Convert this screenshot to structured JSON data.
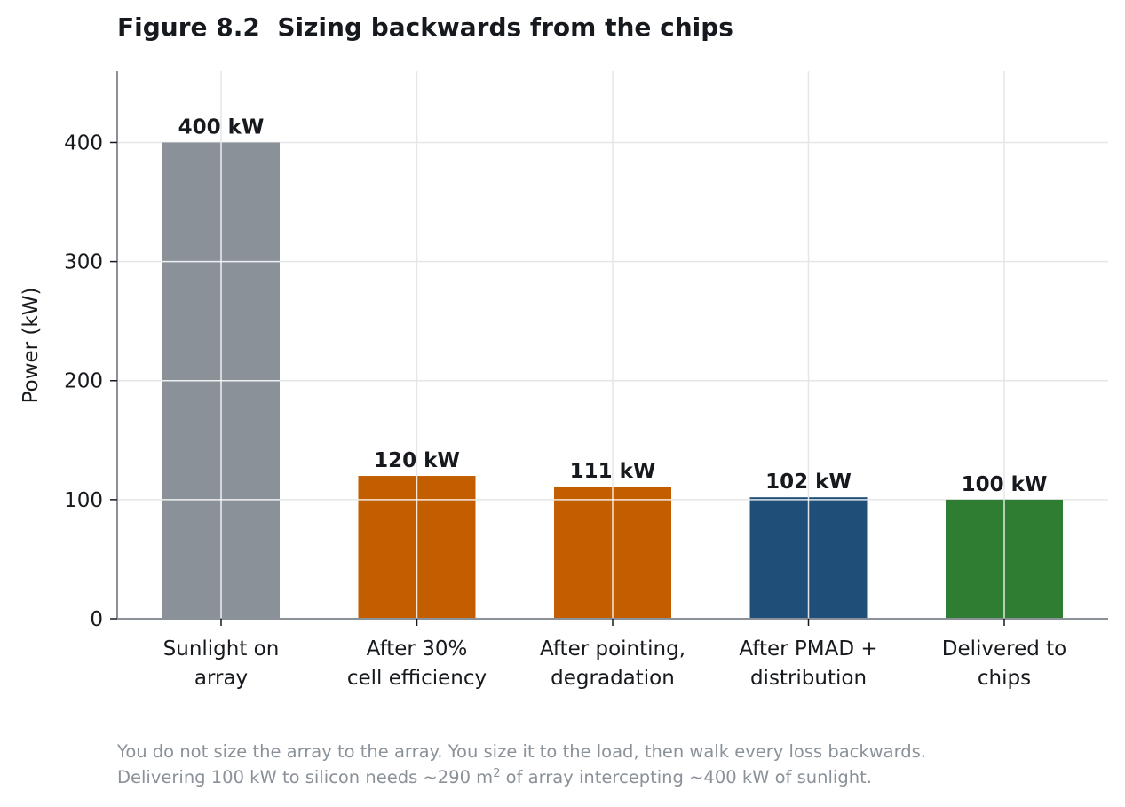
{
  "title": {
    "figure_label": "Figure 8.2",
    "text": "Sizing backwards from the chips"
  },
  "chart_data": {
    "type": "bar",
    "categories": [
      [
        "Sunlight on",
        "array"
      ],
      [
        "After 30%",
        "cell efficiency"
      ],
      [
        "After pointing,",
        "degradation"
      ],
      [
        "After PMAD +",
        "distribution"
      ],
      [
        "Delivered to",
        "chips"
      ]
    ],
    "values": [
      400,
      120,
      111,
      102,
      100
    ],
    "data_labels": [
      "400 kW",
      "120 kW",
      "111 kW",
      "102 kW",
      "100 kW"
    ],
    "colors": [
      "#8a9199",
      "#c25e00",
      "#c25e00",
      "#1f4e79",
      "#2e7d32"
    ],
    "ylabel": "Power (kW)",
    "ylim": [
      0,
      460
    ],
    "yticks": [
      0,
      100,
      200,
      300,
      400
    ],
    "grid": true
  },
  "caption": {
    "line1": "You do not size the array to the array. You size it to the load, then walk every loss backwards.",
    "line2_before": "Delivering 100 kW to silicon needs ~290 m",
    "line2_sup": "2",
    "line2_after": " of array intercepting ~400 kW of sunlight."
  }
}
